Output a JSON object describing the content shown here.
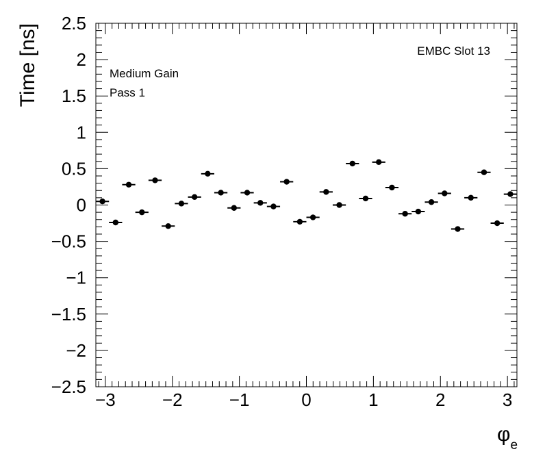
{
  "chart_data": {
    "type": "scatter",
    "ylabel": "Time [ns]",
    "xlabel": "φ",
    "xlabel_subscript": "e",
    "annotations": {
      "top_right": "EMBC Slot 13",
      "line1": "Medium Gain",
      "line2": "Pass 1"
    },
    "xlim": [
      -3.1416,
      3.1416
    ],
    "ylim": [
      -2.5,
      2.5
    ],
    "x_ticks": [
      -3,
      -2,
      -1,
      0,
      1,
      2,
      3
    ],
    "x_tick_labels": [
      "−3",
      "−2",
      "−1",
      "0",
      "1",
      "2",
      "3"
    ],
    "y_ticks": [
      -2.5,
      -2,
      -1.5,
      -1,
      -0.5,
      0,
      0.5,
      1,
      1.5,
      2,
      2.5
    ],
    "y_tick_labels": [
      "−2.5",
      "−2",
      "−1.5",
      "−1",
      "−0.5",
      "0",
      "0.5",
      "1",
      "1.5",
      "2",
      "2.5"
    ],
    "bin_width": 0.19635,
    "grid": false,
    "series": [
      {
        "x": [
          -3.0434,
          -2.8471,
          -2.6507,
          -2.4544,
          -2.258,
          -2.0617,
          -1.8653,
          -1.669,
          -1.4726,
          -1.2763,
          -1.0799,
          -0.8836,
          -0.6872,
          -0.4909,
          -0.2945,
          -0.0982,
          0.0982,
          0.2945,
          0.4909,
          0.6872,
          0.8836,
          1.0799,
          1.2763,
          1.4726,
          1.669,
          1.8653,
          2.0617,
          2.258,
          2.4544,
          2.6507,
          2.8471,
          3.0434
        ],
        "y": [
          0.05,
          -0.24,
          0.28,
          -0.1,
          0.34,
          -0.29,
          0.02,
          0.11,
          0.43,
          0.17,
          -0.04,
          0.17,
          0.03,
          -0.02,
          0.32,
          -0.23,
          -0.17,
          0.18,
          0.0,
          0.57,
          0.09,
          0.59,
          0.24,
          -0.12,
          -0.09,
          0.04,
          0.16,
          -0.33,
          0.1,
          0.45,
          -0.25,
          0.15
        ]
      }
    ]
  }
}
